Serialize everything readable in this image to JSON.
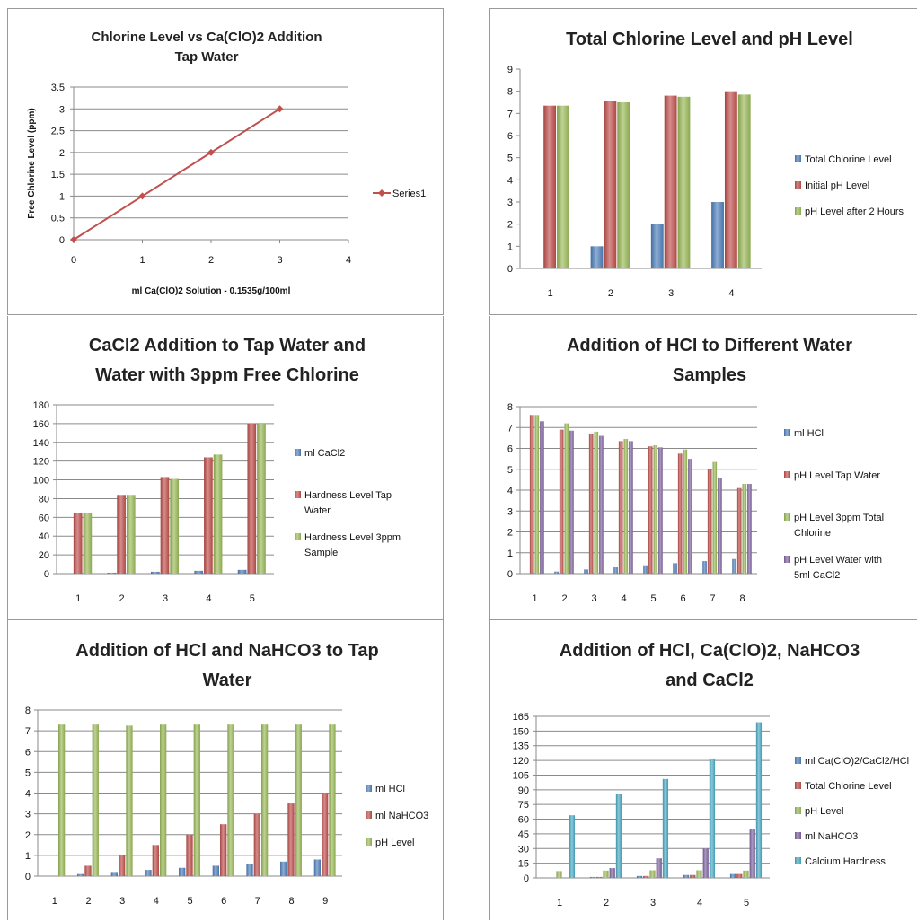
{
  "chart_data": [
    {
      "type": "line",
      "title": "Chlorine Level vs Ca(ClO)2  Addition",
      "subtitle": "Tap Water",
      "xlabel": "ml Ca(ClO)2 Solution - 0.1535g/100ml",
      "ylabel": "Free Chlorine Level (ppm)",
      "x": [
        0,
        1,
        2,
        3
      ],
      "series": [
        {
          "name": "Series1",
          "values": [
            0,
            1,
            2,
            3
          ],
          "color": "#c0504d"
        }
      ],
      "xlim": [
        0,
        4
      ],
      "ylim": [
        0,
        3.5
      ],
      "xticks": [
        "0",
        "1",
        "2",
        "3",
        "4"
      ],
      "yticks": [
        "0",
        "0.5",
        "1",
        "1.5",
        "2",
        "2.5",
        "3",
        "3.5"
      ],
      "grid": true,
      "legend": "right"
    },
    {
      "type": "bar",
      "title": "Total Chlorine Level and pH Level",
      "categories": [
        "1",
        "2",
        "3",
        "4"
      ],
      "series": [
        {
          "name": "Total Chlorine Level",
          "values": [
            0,
            1,
            2,
            3
          ],
          "color": "#4f81bd"
        },
        {
          "name": "Initial pH Level",
          "values": [
            7.35,
            7.55,
            7.8,
            8.0
          ],
          "color": "#c0504d"
        },
        {
          "name": "pH Level after 2 Hours",
          "values": [
            7.35,
            7.5,
            7.75,
            7.85
          ],
          "color": "#9bbb59"
        }
      ],
      "ylim": [
        0,
        9
      ],
      "yticks": [
        "0",
        "1",
        "2",
        "3",
        "4",
        "5",
        "6",
        "7",
        "8",
        "9"
      ],
      "grid": false,
      "legend": "right"
    },
    {
      "type": "bar",
      "title": "CaCl2 Addition to Tap Water and",
      "subtitle": "Water with 3ppm Free Chlorine",
      "categories": [
        "1",
        "2",
        "3",
        "4",
        "5"
      ],
      "series": [
        {
          "name": "ml CaCl2",
          "values": [
            0,
            1,
            2,
            3,
            4
          ],
          "color": "#4f81bd"
        },
        {
          "name": "Hardness Level Tap Water",
          "values": [
            65,
            84,
            103,
            124,
            160
          ],
          "color": "#c0504d"
        },
        {
          "name": "Hardness Level 3ppm Sample",
          "values": [
            65,
            84,
            101,
            127,
            160
          ],
          "color": "#9bbb59"
        }
      ],
      "ylim": [
        0,
        180
      ],
      "yticks": [
        "0",
        "20",
        "40",
        "60",
        "80",
        "100",
        "120",
        "140",
        "160",
        "180"
      ],
      "grid": true,
      "legend": "right"
    },
    {
      "type": "bar",
      "title": "Addition of HCl to Different Water",
      "subtitle": "Samples",
      "categories": [
        "1",
        "2",
        "3",
        "4",
        "5",
        "6",
        "7",
        "8"
      ],
      "series": [
        {
          "name": "ml HCl",
          "values": [
            0,
            0.1,
            0.2,
            0.3,
            0.4,
            0.5,
            0.6,
            0.7
          ],
          "color": "#4f81bd"
        },
        {
          "name": "pH Level Tap Water",
          "values": [
            7.6,
            6.9,
            6.7,
            6.35,
            6.1,
            5.75,
            5.0,
            4.1
          ],
          "color": "#c0504d"
        },
        {
          "name": "pH Level 3ppm Total Chlorine",
          "values": [
            7.6,
            7.2,
            6.8,
            6.45,
            6.15,
            5.95,
            5.35,
            4.3
          ],
          "color": "#9bbb59"
        },
        {
          "name": "pH Level Water with 5ml CaCl2",
          "values": [
            7.3,
            6.85,
            6.6,
            6.35,
            6.05,
            5.5,
            4.6,
            4.3
          ],
          "color": "#8064a2"
        }
      ],
      "ylim": [
        0,
        8
      ],
      "yticks": [
        "0",
        "1",
        "2",
        "3",
        "4",
        "5",
        "6",
        "7",
        "8"
      ],
      "grid": true,
      "legend": "right"
    },
    {
      "type": "bar",
      "title": "Addition of HCl and NaHCO3 to Tap",
      "subtitle": "Water",
      "categories": [
        "1",
        "2",
        "3",
        "4",
        "5",
        "6",
        "7",
        "8",
        "9"
      ],
      "series": [
        {
          "name": "ml HCl",
          "values": [
            0,
            0.1,
            0.2,
            0.3,
            0.4,
            0.5,
            0.6,
            0.7,
            0.8
          ],
          "color": "#4f81bd"
        },
        {
          "name": "ml NaHCO3",
          "values": [
            0,
            0.5,
            1.0,
            1.5,
            2.0,
            2.5,
            3.0,
            3.5,
            4.0
          ],
          "color": "#c0504d"
        },
        {
          "name": "pH Level",
          "values": [
            7.3,
            7.3,
            7.25,
            7.3,
            7.3,
            7.3,
            7.3,
            7.3,
            7.3
          ],
          "color": "#9bbb59"
        }
      ],
      "ylim": [
        0,
        8
      ],
      "yticks": [
        "0",
        "1",
        "2",
        "3",
        "4",
        "5",
        "6",
        "7",
        "8"
      ],
      "grid": true,
      "legend": "right"
    },
    {
      "type": "bar",
      "title": "Addition of HCl, Ca(ClO)2, NaHCO3",
      "subtitle": "and CaCl2",
      "categories": [
        "1",
        "2",
        "3",
        "4",
        "5"
      ],
      "series": [
        {
          "name": "ml Ca(ClO)2/CaCl2/HCl",
          "values": [
            0,
            1,
            2,
            3,
            4
          ],
          "color": "#4f81bd"
        },
        {
          "name": "Total Chlorine Level",
          "values": [
            0,
            1,
            2,
            3,
            4
          ],
          "color": "#c0504d"
        },
        {
          "name": "pH Level",
          "values": [
            7,
            7.5,
            7.8,
            7.8,
            7.5
          ],
          "color": "#9bbb59"
        },
        {
          "name": "ml NaHCO3",
          "values": [
            0,
            10,
            20,
            30,
            50
          ],
          "color": "#8064a2"
        },
        {
          "name": "Calcium Hardness",
          "values": [
            64,
            86,
            101,
            122,
            159
          ],
          "color": "#4bacc6"
        }
      ],
      "ylim": [
        0,
        165
      ],
      "yticks": [
        "0",
        "15",
        "30",
        "45",
        "60",
        "75",
        "90",
        "105",
        "120",
        "135",
        "150",
        "165"
      ],
      "grid": true,
      "legend": "right"
    }
  ]
}
